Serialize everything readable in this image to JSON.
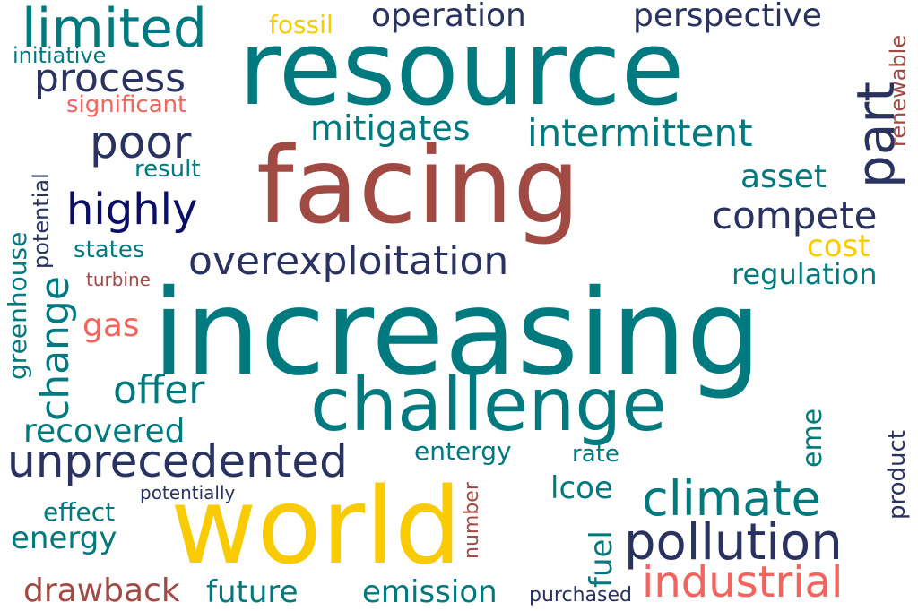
{
  "palette": {
    "teal": "#00797F",
    "navy": "#2A3260",
    "rust": "#A14A44",
    "gold": "#F9CB02",
    "coral": "#F2645D",
    "deepblue": "#0A0E66"
  },
  "words": {
    "resource": "resource",
    "facing": "facing",
    "increasing": "increasing",
    "world": "world",
    "challenge": "challenge",
    "limited": "limited",
    "unprecedented": "unprecedented",
    "overexploitation": "overexploitation",
    "pollution": "pollution",
    "climate": "climate",
    "industrial": "industrial",
    "intermittent": "intermittent",
    "compete": "compete",
    "poor": "poor",
    "highly": "highly",
    "process": "process",
    "mitigates": "mitigates",
    "part": "part",
    "offer": "offer",
    "change": "change",
    "recovered": "recovered",
    "drawback": "drawback",
    "future": "future",
    "emission": "emission",
    "energy": "energy",
    "effect": "effect",
    "asset": "asset",
    "regulation": "regulation",
    "cost": "cost",
    "operation": "operation",
    "perspective": "perspective",
    "fossil": "fossil",
    "initiative": "initiative",
    "significant": "significant",
    "renewable": "renewable",
    "potential": "potential",
    "greenhouse": "greenhouse",
    "result": "result",
    "states": "states",
    "turbine": "turbine",
    "gas": "gas",
    "entergy": "entergy",
    "rate": "rate",
    "lcoe": "lcoe",
    "eme": "eme",
    "product": "product",
    "fuel": "fuel",
    "number": "number",
    "potentially": "potentially",
    "purchased": "purchased"
  }
}
